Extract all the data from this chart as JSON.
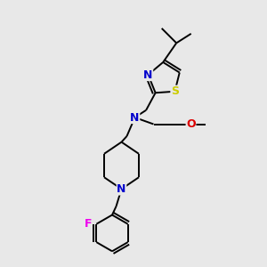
{
  "bg_color": "#e8e8e8",
  "atom_colors": {
    "N": "#0000cc",
    "S": "#cccc00",
    "F": "#ee00ee",
    "O": "#dd0000",
    "C": "#000000"
  },
  "bond_color": "#000000",
  "bond_width": 1.4
}
